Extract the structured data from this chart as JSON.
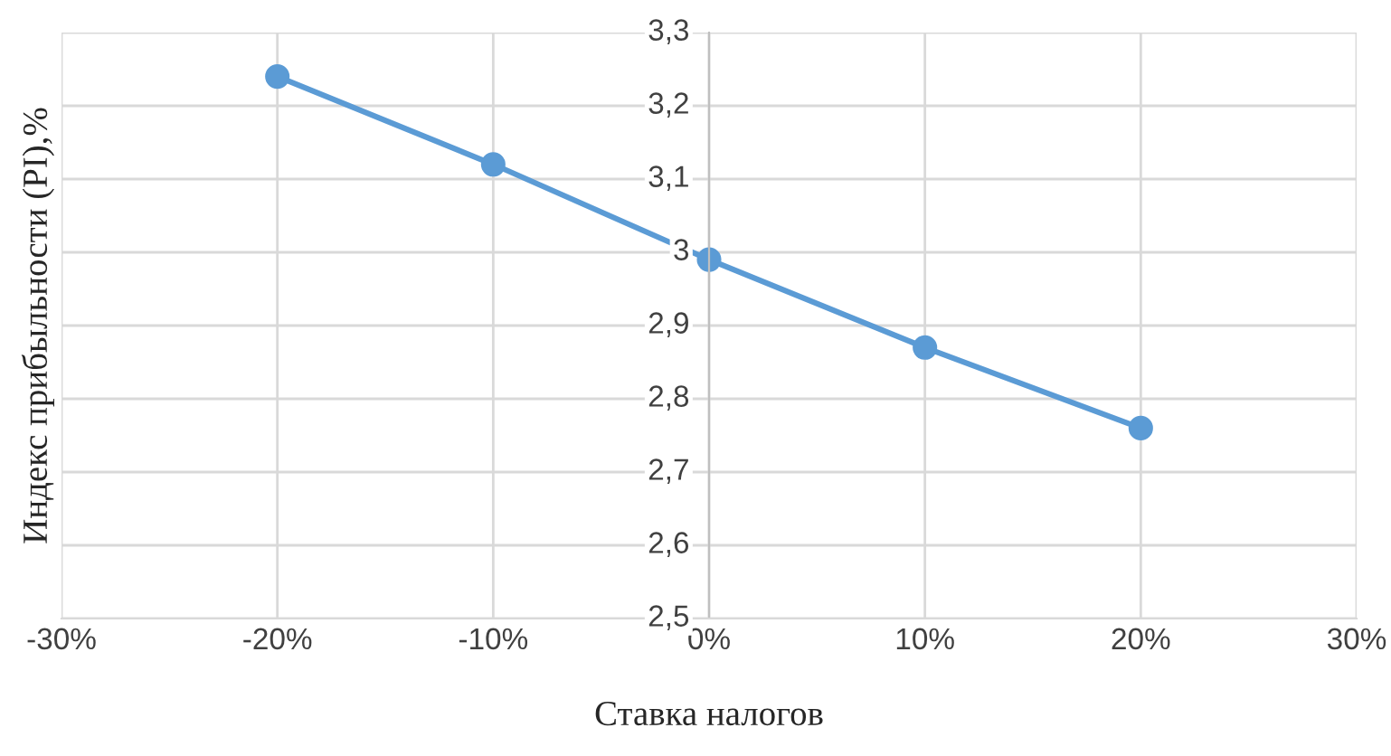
{
  "chart_data": {
    "type": "line",
    "xlabel": "Ставка налогов",
    "ylabel": "Индекс прибыльности (PI),%",
    "x": [
      -20,
      -10,
      0,
      10,
      20
    ],
    "series": [
      {
        "color": "#5b9bd5",
        "values": [
          3.24,
          3.12,
          2.99,
          2.87,
          2.76
        ]
      }
    ],
    "xlim": [
      -30,
      30
    ],
    "xticks": [
      {
        "value": -30,
        "label": "-30%"
      },
      {
        "value": -20,
        "label": "-20%"
      },
      {
        "value": -10,
        "label": "-10%"
      },
      {
        "value": 0,
        "label": "0%"
      },
      {
        "value": 10,
        "label": "10%"
      },
      {
        "value": 20,
        "label": "20%"
      },
      {
        "value": 30,
        "label": "30%"
      }
    ],
    "ylim": [
      2.5,
      3.3
    ],
    "yticks": [
      {
        "value": 2.5,
        "label": "2,5"
      },
      {
        "value": 2.6,
        "label": "2,6"
      },
      {
        "value": 2.7,
        "label": "2,7"
      },
      {
        "value": 2.8,
        "label": "2,8"
      },
      {
        "value": 2.9,
        "label": "2,9"
      },
      {
        "value": 3,
        "label": "3"
      },
      {
        "value": 3.1,
        "label": "3,1"
      },
      {
        "value": 3.2,
        "label": "3,2"
      },
      {
        "value": 3.3,
        "label": "3,3"
      }
    ],
    "grid": true,
    "marker": "circle",
    "line_style": "solid"
  }
}
